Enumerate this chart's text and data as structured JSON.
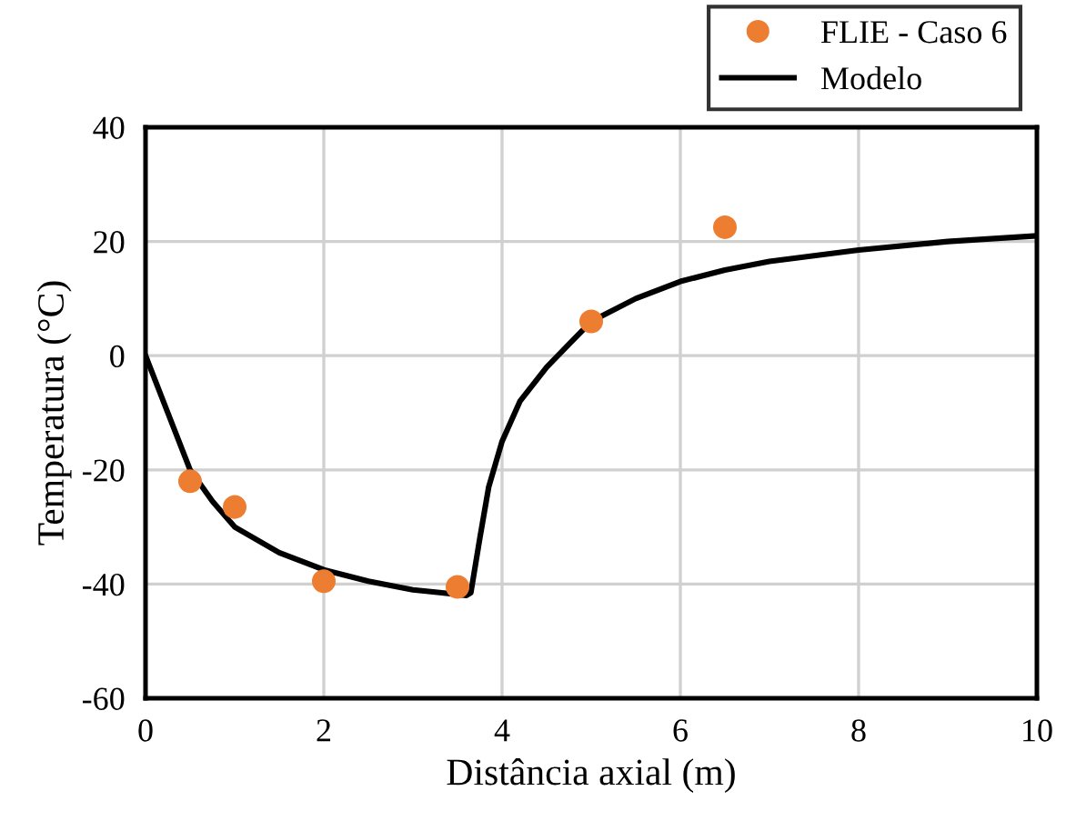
{
  "chart_data": {
    "type": "line",
    "xlabel": "Distância axial (m)",
    "ylabel": "Temperatura (°C)",
    "xlim": [
      0,
      10
    ],
    "xticks": [
      0,
      2,
      4,
      6,
      8,
      10
    ],
    "ylim": [
      -60,
      40
    ],
    "yticks": [
      -60,
      -40,
      -20,
      0,
      20,
      40
    ],
    "grid": true,
    "legend": "top right",
    "series": [
      {
        "name": "FLIE - Caso 6",
        "type": "scatter",
        "marker": "circle",
        "color": "#ed7d31",
        "x": [
          0.5,
          1,
          2,
          3.5,
          5,
          6.5
        ],
        "values": [
          -22,
          -26.5,
          -39.5,
          -40.5,
          6,
          22.5
        ]
      },
      {
        "name": "Modelo",
        "color": "#000000",
        "line_style": "solid",
        "x": [
          0,
          0.25,
          0.5,
          0.75,
          1,
          1.5,
          2,
          2.5,
          3,
          3.3,
          3.6,
          3.65,
          3.75,
          3.85,
          4,
          4.2,
          4.5,
          4.75,
          5,
          5.5,
          6,
          6.5,
          7,
          7.5,
          8,
          9,
          10
        ],
        "values": [
          0,
          -10,
          -20,
          -25.5,
          -30,
          -34.5,
          -37.5,
          -39.5,
          -41,
          -41.5,
          -42,
          -41.5,
          -32,
          -23,
          -15,
          -8,
          -2,
          2,
          6,
          10,
          13,
          15,
          16.5,
          17.5,
          18.5,
          20,
          21
        ]
      }
    ]
  }
}
